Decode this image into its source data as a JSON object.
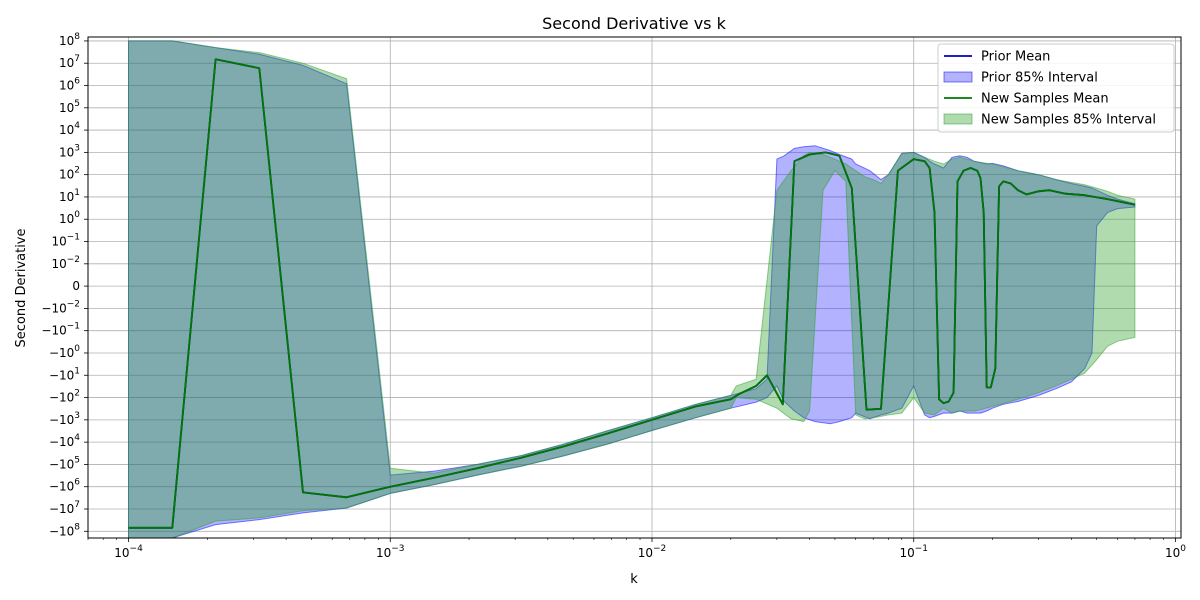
{
  "chart_data": {
    "type": "line",
    "title": "Second Derivative vs k",
    "xlabel": "k",
    "ylabel": "Second Derivative",
    "x_scale": "log",
    "y_scale": "symlog",
    "y_linthresh": 0.01,
    "xlim": [
      7e-05,
      1.05
    ],
    "ylim": [
      -200000000,
      150000000
    ],
    "grid": true,
    "legend_position": "top-right",
    "x_ticks": [
      {
        "value": 0.0001,
        "base": "10",
        "exp": "−4"
      },
      {
        "value": 0.001,
        "base": "10",
        "exp": "−3"
      },
      {
        "value": 0.01,
        "base": "10",
        "exp": "−2"
      },
      {
        "value": 0.1,
        "base": "10",
        "exp": "−1"
      },
      {
        "value": 1,
        "base": "10",
        "exp": "0"
      }
    ],
    "y_ticks": [
      {
        "value": 100000000,
        "base": "10",
        "exp": "8"
      },
      {
        "value": 10000000,
        "base": "10",
        "exp": "7"
      },
      {
        "value": 1000000,
        "base": "10",
        "exp": "6"
      },
      {
        "value": 100000,
        "base": "10",
        "exp": "5"
      },
      {
        "value": 10000,
        "base": "10",
        "exp": "4"
      },
      {
        "value": 1000,
        "base": "10",
        "exp": "3"
      },
      {
        "value": 100,
        "base": "10",
        "exp": "2"
      },
      {
        "value": 10,
        "base": "10",
        "exp": "1"
      },
      {
        "value": 1,
        "base": "10",
        "exp": "0"
      },
      {
        "value": 0.1,
        "base": "10",
        "exp": "−1"
      },
      {
        "value": 0.01,
        "base": "10",
        "exp": "−2"
      },
      {
        "value": 0,
        "base": "0",
        "exp": ""
      },
      {
        "value": -0.01,
        "base": "−10",
        "exp": "−2"
      },
      {
        "value": -0.1,
        "base": "−10",
        "exp": "−1"
      },
      {
        "value": -1,
        "base": "−10",
        "exp": "0"
      },
      {
        "value": -10,
        "base": "−10",
        "exp": "1"
      },
      {
        "value": -100,
        "base": "−10",
        "exp": "2"
      },
      {
        "value": -1000,
        "base": "−10",
        "exp": "3"
      },
      {
        "value": -10000,
        "base": "−10",
        "exp": "4"
      },
      {
        "value": -100000,
        "base": "−10",
        "exp": "5"
      },
      {
        "value": -1000000,
        "base": "−10",
        "exp": "6"
      },
      {
        "value": -10000000,
        "base": "−10",
        "exp": "7"
      },
      {
        "value": -100000000,
        "base": "−10",
        "exp": "8"
      }
    ],
    "series": [
      {
        "name": "Prior Mean",
        "kind": "line",
        "color": "#0000bb",
        "x": [
          0.0001,
          0.000147,
          0.000215,
          0.000316,
          0.000464,
          0.000681,
          0.001,
          0.00147,
          0.00215,
          0.00316,
          0.00464,
          0.00681,
          0.01,
          0.0147,
          0.02,
          0.0215,
          0.025,
          0.0275,
          0.0316,
          0.035,
          0.04,
          0.046,
          0.052,
          0.058,
          0.066,
          0.075,
          0.087,
          0.1,
          0.11,
          0.115,
          0.12,
          0.125,
          0.13,
          0.136,
          0.142,
          0.147,
          0.155,
          0.165,
          0.175,
          0.18,
          0.185,
          0.19,
          0.197,
          0.205,
          0.212,
          0.22,
          0.235,
          0.25,
          0.27,
          0.3,
          0.33,
          0.38,
          0.45,
          0.55,
          0.7
        ],
        "y": [
          -70000000,
          -70000000,
          15000000,
          6000000,
          -1800000,
          -3000000,
          -1000000,
          -400000,
          -150000,
          -50000,
          -15000,
          -4000,
          -1000,
          -250,
          -120,
          -70,
          -30,
          -10,
          -200,
          400,
          800,
          1000,
          700,
          25,
          -350,
          -320,
          150,
          500,
          400,
          200,
          2,
          -120,
          -180,
          -150,
          -60,
          50,
          150,
          200,
          150,
          70,
          2,
          -35,
          -35,
          -5,
          30,
          50,
          40,
          20,
          13,
          18,
          20,
          14,
          12,
          8,
          4.5
        ]
      },
      {
        "name": "Prior 85% Interval",
        "kind": "band",
        "color": "#0000ff",
        "x": [
          0.0001,
          0.000147,
          0.000215,
          0.000316,
          0.000464,
          0.000681,
          0.001,
          0.00147,
          0.00215,
          0.00316,
          0.00464,
          0.00681,
          0.01,
          0.0147,
          0.02,
          0.025,
          0.0275,
          0.03,
          0.032,
          0.035,
          0.038,
          0.042,
          0.048,
          0.052,
          0.058,
          0.06,
          0.068,
          0.075,
          0.08,
          0.09,
          0.1,
          0.11,
          0.115,
          0.12,
          0.13,
          0.14,
          0.15,
          0.16,
          0.17,
          0.18,
          0.19,
          0.2,
          0.22,
          0.25,
          0.3,
          0.35,
          0.4,
          0.45,
          0.48,
          0.5,
          0.55,
          0.6,
          0.7
        ],
        "upper": [
          100000000,
          100000000,
          50000000,
          25000000,
          8000000,
          1200000,
          -300000,
          -200000,
          -100000,
          -40000,
          -12000,
          -3000,
          -800,
          -200,
          -80,
          -40,
          -15,
          500,
          700,
          1500,
          1800,
          2000,
          1200,
          800,
          500,
          300,
          150,
          60,
          100,
          900,
          1000,
          600,
          400,
          300,
          200,
          600,
          700,
          600,
          400,
          350,
          300,
          320,
          250,
          150,
          100,
          60,
          40,
          30,
          25,
          20,
          12,
          8,
          5
        ],
        "lower": [
          -200000000,
          -200000000,
          -50000000,
          -30000000,
          -15000000,
          -9000000,
          -2000000,
          -800000,
          -300000,
          -120000,
          -40000,
          -12000,
          -3000,
          -800,
          -300,
          -160,
          -100,
          -30,
          -150,
          -400,
          -800,
          -1200,
          -1500,
          -1200,
          -800,
          -500,
          -900,
          -600,
          -500,
          -300,
          -30,
          -600,
          -800,
          -700,
          -500,
          -500,
          -400,
          -500,
          -500,
          -500,
          -400,
          -300,
          -200,
          -150,
          -80,
          -40,
          -20,
          -5,
          -1,
          0.5,
          2,
          3,
          3.5
        ]
      },
      {
        "name": "New Samples Mean",
        "kind": "line",
        "color": "#007700",
        "x": [
          0.0001,
          0.000147,
          0.000215,
          0.000316,
          0.000464,
          0.000681,
          0.001,
          0.00147,
          0.00215,
          0.00316,
          0.00464,
          0.00681,
          0.01,
          0.0147,
          0.02,
          0.0215,
          0.025,
          0.0275,
          0.0316,
          0.035,
          0.04,
          0.046,
          0.052,
          0.058,
          0.066,
          0.075,
          0.087,
          0.1,
          0.11,
          0.115,
          0.12,
          0.125,
          0.13,
          0.136,
          0.142,
          0.147,
          0.155,
          0.165,
          0.175,
          0.18,
          0.185,
          0.19,
          0.197,
          0.205,
          0.212,
          0.22,
          0.235,
          0.25,
          0.27,
          0.3,
          0.33,
          0.38,
          0.45,
          0.55,
          0.7
        ],
        "y": [
          -70000000,
          -70000000,
          15000000,
          6000000,
          -1800000,
          -3000000,
          -1000000,
          -400000,
          -150000,
          -50000,
          -15000,
          -4000,
          -1000,
          -250,
          -120,
          -70,
          -30,
          -10,
          -200,
          400,
          800,
          1000,
          700,
          25,
          -350,
          -320,
          150,
          500,
          400,
          200,
          2,
          -120,
          -180,
          -150,
          -60,
          50,
          150,
          200,
          150,
          70,
          2,
          -35,
          -35,
          -5,
          30,
          50,
          40,
          20,
          13,
          18,
          20,
          14,
          12,
          8,
          4.5
        ]
      },
      {
        "name": "New Samples 85% Interval",
        "kind": "band",
        "color": "#2ca02c",
        "x": [
          0.0001,
          0.000147,
          0.000215,
          0.000316,
          0.000464,
          0.000681,
          0.001,
          0.00147,
          0.00215,
          0.00316,
          0.00464,
          0.00681,
          0.01,
          0.0147,
          0.02,
          0.021,
          0.025,
          0.03,
          0.034,
          0.038,
          0.04,
          0.045,
          0.05,
          0.055,
          0.06,
          0.065,
          0.07,
          0.075,
          0.08,
          0.09,
          0.1,
          0.11,
          0.12,
          0.13,
          0.14,
          0.15,
          0.16,
          0.17,
          0.18,
          0.2,
          0.25,
          0.3,
          0.35,
          0.4,
          0.45,
          0.5,
          0.55,
          0.6,
          0.7
        ],
        "upper": [
          100000000,
          100000000,
          50000000,
          30000000,
          10000000,
          2000000,
          -150000,
          -250000,
          -100000,
          -40000,
          -12000,
          -3000,
          -800,
          -200,
          -80,
          -30,
          -15,
          20,
          150,
          700,
          1000,
          800,
          500,
          300,
          150,
          80,
          60,
          40,
          100,
          900,
          1000,
          600,
          400,
          300,
          500,
          600,
          500,
          400,
          350,
          300,
          150,
          100,
          60,
          45,
          35,
          25,
          18,
          12,
          8
        ],
        "lower": [
          -200000000,
          -200000000,
          -35000000,
          -25000000,
          -12000000,
          -9000000,
          -2000000,
          -800000,
          -300000,
          -120000,
          -40000,
          -12000,
          -3000,
          -800,
          -300,
          -100,
          -120,
          -300,
          -900,
          -1200,
          -400,
          20,
          150,
          50,
          -600,
          -900,
          -800,
          -700,
          -600,
          -500,
          -100,
          -500,
          -600,
          -300,
          -500,
          -400,
          -400,
          -400,
          -350,
          -250,
          -120,
          -60,
          -30,
          -15,
          -8,
          -2,
          -0.5,
          -0.3,
          -0.2
        ]
      }
    ]
  }
}
